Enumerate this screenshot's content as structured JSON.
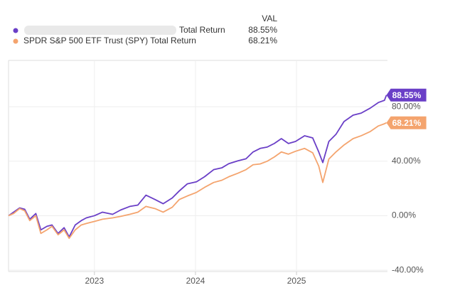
{
  "chart_data": {
    "type": "line",
    "legend_header": "VAL",
    "xlim": [
      2022.15,
      2025.9
    ],
    "xticks": [
      2023,
      2024,
      2025
    ],
    "ylim": [
      -41,
      114
    ],
    "yticks": [
      {
        "value": 80,
        "label": "80.00%"
      },
      {
        "value": 40,
        "label": "40.00%"
      },
      {
        "value": 0,
        "label": "0.00%"
      },
      {
        "value": -40,
        "label": "-40.00%"
      }
    ],
    "grid": true,
    "x": [
      2022.15,
      2022.2,
      2022.26,
      2022.31,
      2022.36,
      2022.42,
      2022.47,
      2022.53,
      2022.58,
      2022.64,
      2022.7,
      2022.75,
      2022.81,
      2022.87,
      2022.92,
      2023.0,
      2023.08,
      2023.18,
      2023.26,
      2023.35,
      2023.43,
      2023.51,
      2023.6,
      2023.68,
      2023.77,
      2023.84,
      2023.92,
      2024.01,
      2024.09,
      2024.18,
      2024.26,
      2024.33,
      2024.42,
      2024.5,
      2024.57,
      2024.64,
      2024.71,
      2024.78,
      2024.85,
      2024.92,
      2024.99,
      2025.08,
      2025.16,
      2025.22,
      2025.26,
      2025.32,
      2025.39,
      2025.47,
      2025.56,
      2025.64,
      2025.73,
      2025.81,
      2025.87,
      2025.89
    ],
    "series": [
      {
        "name": "Total Return",
        "color": "#6a3fc7",
        "value_label": "88.55%",
        "values": [
          0,
          2.6,
          5.7,
          4.7,
          -2.6,
          1.6,
          -10.4,
          -7.8,
          -6.8,
          -13.0,
          -8.8,
          -15.6,
          -6.8,
          -3.6,
          -1.6,
          0,
          2.6,
          1.0,
          4.2,
          6.8,
          7.8,
          15.1,
          11.9,
          8.8,
          13.0,
          18.2,
          23.4,
          24.9,
          28.6,
          33.8,
          35.1,
          38.2,
          40.3,
          41.8,
          46.8,
          49.4,
          50.4,
          53.0,
          56.6,
          53.0,
          54.5,
          58.7,
          57.1,
          46.8,
          39.0,
          54.5,
          59.7,
          69.1,
          73.8,
          75.3,
          79.0,
          83.1,
          84.7,
          88.55
        ]
      },
      {
        "name": "SPDR S&P 500 ETF Trust (SPY) Total Return",
        "color": "#f4a46e",
        "value_label": "68.21%",
        "values": [
          0,
          1.6,
          5.2,
          3.6,
          -3.6,
          0,
          -13.0,
          -10.4,
          -7.8,
          -14.0,
          -10.4,
          -16.6,
          -10.4,
          -6.8,
          -5.7,
          -4.2,
          -2.6,
          -1.6,
          -0.5,
          1.0,
          2.6,
          6.8,
          5.2,
          2.6,
          6.2,
          11.9,
          14.5,
          17.1,
          20.8,
          24.4,
          26.0,
          28.6,
          31.2,
          33.8,
          37.4,
          38.0,
          40.0,
          43.1,
          46.8,
          45.2,
          47.3,
          49.4,
          46.2,
          36.4,
          24.4,
          41.6,
          46.8,
          51.9,
          56.6,
          58.7,
          61.8,
          65.9,
          67.5,
          68.21
        ]
      }
    ]
  }
}
